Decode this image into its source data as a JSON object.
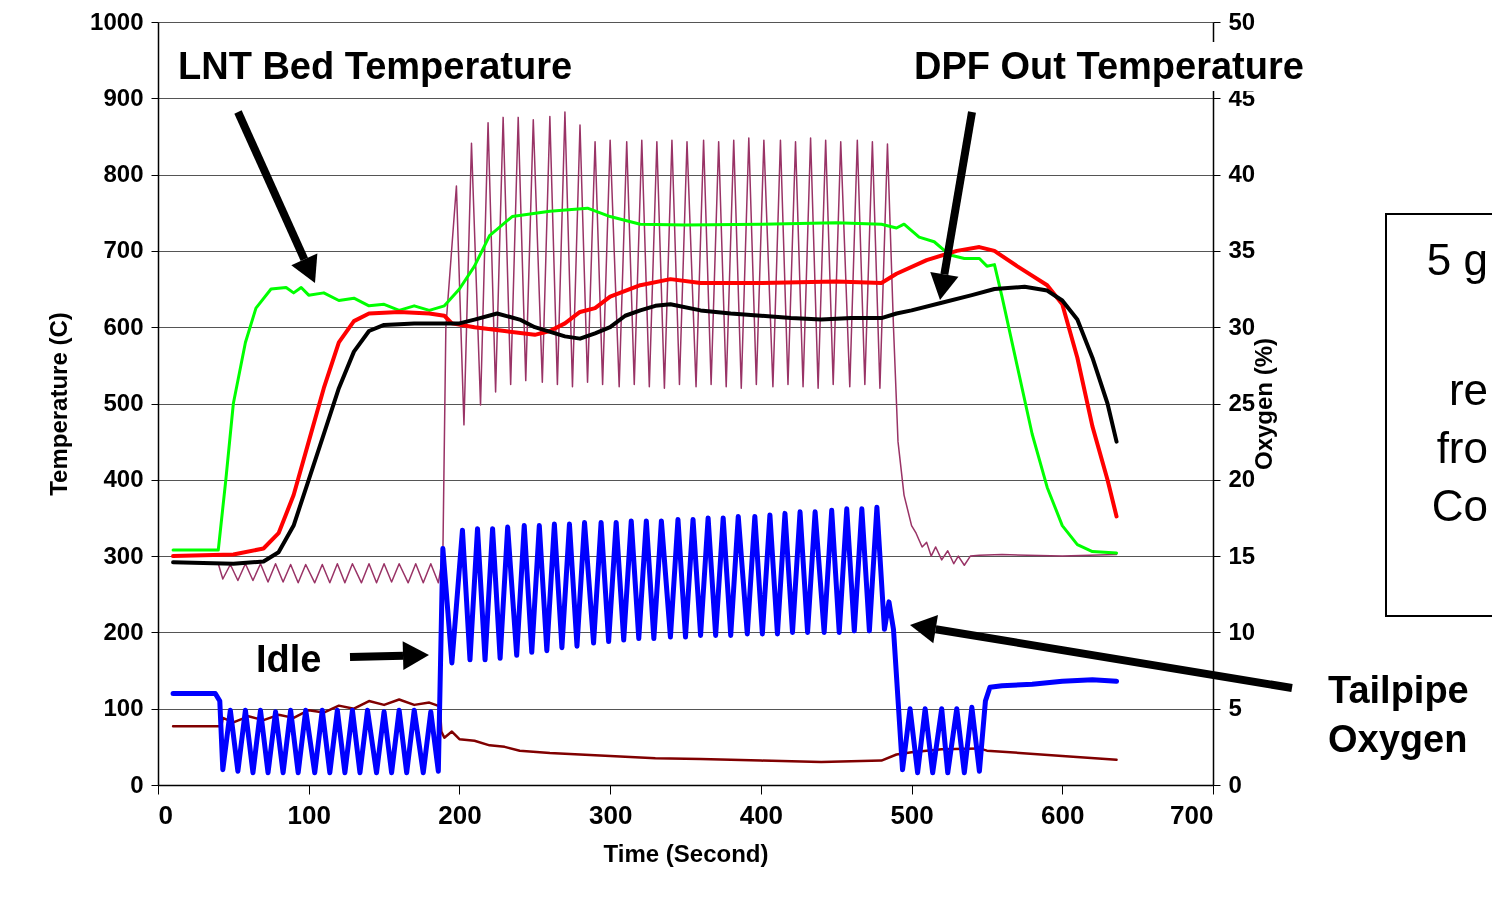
{
  "chart_data": {
    "type": "line",
    "xlabel": "Time (Second)",
    "ylabel": "Temperature (C)",
    "y2label": "Oxygen (%)",
    "xlim": [
      0,
      700
    ],
    "xticks": [
      0,
      100,
      200,
      300,
      400,
      500,
      600,
      700
    ],
    "ylim": [
      0,
      1000
    ],
    "yticks": [
      0,
      100,
      200,
      300,
      400,
      500,
      600,
      700,
      800,
      900,
      1000
    ],
    "y2lim": [
      0,
      50
    ],
    "y2ticks": [
      0,
      5,
      10,
      15,
      20,
      25,
      30,
      35,
      40,
      45,
      50
    ],
    "grid": "y",
    "annotations": [
      "LNT Bed Temperature",
      "DPF Out Temperature",
      "Idle",
      "Tailpipe Oxygen",
      "5 g",
      "re",
      "fro",
      "Co"
    ],
    "series": [
      {
        "color": "#993366",
        "x": [
          40,
          43,
          48,
          53,
          58,
          63,
          68,
          73,
          78,
          83,
          88,
          93,
          98,
          104,
          109,
          114,
          119,
          124,
          129,
          135,
          140,
          145,
          150,
          155,
          160,
          166,
          171,
          176,
          181,
          186,
          189,
          191,
          198,
          203,
          208,
          214,
          219,
          224,
          229,
          234,
          239,
          244,
          249,
          255,
          260,
          265,
          270,
          275,
          280,
          285,
          290,
          295,
          300,
          306,
          311,
          316,
          321,
          326,
          331,
          336,
          341,
          346,
          351,
          357,
          362,
          367,
          372,
          377,
          382,
          387,
          392,
          397,
          402,
          408,
          413,
          418,
          423,
          428,
          433,
          438,
          443,
          448,
          453,
          459,
          464,
          469,
          474,
          479,
          484,
          488,
          491,
          495,
          500,
          503,
          507,
          510,
          513,
          516,
          520,
          524,
          528,
          531,
          535,
          539,
          545,
          560,
          600,
          636
        ],
        "values": [
          290,
          270,
          289,
          268,
          290,
          268,
          290,
          266,
          290,
          266,
          289,
          265,
          289,
          265,
          289,
          265,
          290,
          265,
          290,
          265,
          290,
          265,
          290,
          266,
          290,
          265,
          290,
          265,
          290,
          265,
          300,
          600,
          785,
          472,
          841,
          498,
          868,
          515,
          875,
          525,
          875,
          530,
          872,
          528,
          876,
          525,
          882,
          522,
          865,
          528,
          843,
          525,
          845,
          522,
          843,
          525,
          845,
          522,
          843,
          520,
          845,
          525,
          843,
          522,
          845,
          525,
          843,
          522,
          845,
          520,
          848,
          525,
          845,
          522,
          845,
          525,
          843,
          522,
          848,
          520,
          845,
          525,
          843,
          522,
          845,
          525,
          843,
          520,
          840,
          600,
          450,
          380,
          340,
          330,
          312,
          318,
          300,
          312,
          295,
          307,
          290,
          300,
          288,
          300,
          301,
          302,
          300,
          302
        ]
      },
      {
        "color": "#800000",
        "x": [
          10,
          42,
          43,
          50,
          60,
          70,
          80,
          90,
          100,
          110,
          120,
          130,
          140,
          150,
          160,
          170,
          180,
          187,
          188,
          190,
          195,
          200,
          210,
          220,
          230,
          240,
          260,
          280,
          300,
          330,
          360,
          400,
          440,
          480,
          490,
          500,
          520,
          545,
          550,
          600,
          636
        ],
        "values": [
          77,
          77,
          88,
          82,
          90,
          85,
          92,
          88,
          98,
          95,
          104,
          100,
          110,
          105,
          112,
          105,
          108,
          103,
          70,
          62,
          70,
          60,
          58,
          52,
          50,
          45,
          42,
          40,
          38,
          35,
          34,
          32,
          30,
          32,
          40,
          43,
          47,
          48,
          45,
          38,
          33
        ]
      },
      {
        "color": "#00ff00",
        "x": [
          10,
          40,
          45,
          50,
          58,
          65,
          75,
          85,
          90,
          95,
          100,
          110,
          120,
          130,
          140,
          150,
          160,
          170,
          180,
          190,
          200,
          210,
          220,
          235,
          260,
          285,
          300,
          320,
          350,
          400,
          450,
          480,
          490,
          495,
          505,
          515,
          525,
          535,
          545,
          550,
          555,
          560,
          570,
          580,
          590,
          600,
          610,
          620,
          636
        ],
        "values": [
          308,
          308,
          400,
          500,
          580,
          625,
          650,
          652,
          645,
          652,
          642,
          645,
          635,
          638,
          628,
          630,
          622,
          628,
          622,
          628,
          650,
          680,
          720,
          745,
          752,
          756,
          745,
          735,
          734,
          735,
          737,
          735,
          730,
          735,
          718,
          712,
          695,
          690,
          690,
          680,
          682,
          640,
          550,
          460,
          390,
          340,
          315,
          306,
          304
        ]
      },
      {
        "color": "#ff0000",
        "x": [
          10,
          50,
          70,
          80,
          90,
          100,
          110,
          120,
          130,
          140,
          160,
          180,
          190,
          195,
          210,
          230,
          250,
          260,
          270,
          280,
          290,
          300,
          320,
          340,
          360,
          400,
          450,
          480,
          490,
          510,
          530,
          545,
          555,
          570,
          590,
          600,
          610,
          620,
          630,
          636
        ],
        "values": [
          300,
          302,
          310,
          330,
          380,
          450,
          520,
          580,
          608,
          618,
          620,
          618,
          615,
          605,
          600,
          595,
          590,
          595,
          605,
          620,
          625,
          640,
          655,
          663,
          658,
          658,
          660,
          658,
          670,
          688,
          700,
          705,
          700,
          680,
          655,
          630,
          560,
          470,
          400,
          352
        ]
      },
      {
        "color": "#000000",
        "x": [
          10,
          50,
          70,
          80,
          90,
          100,
          110,
          120,
          130,
          140,
          150,
          170,
          190,
          200,
          210,
          225,
          240,
          250,
          270,
          280,
          290,
          300,
          310,
          320,
          330,
          340,
          360,
          380,
          400,
          420,
          440,
          460,
          480,
          490,
          500,
          520,
          540,
          555,
          575,
          590,
          600,
          610,
          620,
          630,
          636
        ],
        "values": [
          292,
          290,
          293,
          305,
          340,
          400,
          460,
          520,
          568,
          595,
          603,
          605,
          605,
          605,
          610,
          618,
          610,
          600,
          588,
          585,
          592,
          600,
          615,
          622,
          628,
          630,
          622,
          618,
          615,
          612,
          610,
          612,
          612,
          618,
          622,
          632,
          642,
          650,
          653,
          648,
          635,
          610,
          560,
          500,
          450
        ]
      },
      {
        "color": "#0000ff",
        "axis": "y2",
        "x": [
          10,
          38,
          41,
          43,
          48,
          53,
          58,
          63,
          68,
          73,
          78,
          83,
          88,
          93,
          98,
          104,
          109,
          114,
          119,
          124,
          129,
          134,
          139,
          145,
          150,
          155,
          160,
          165,
          170,
          176,
          181,
          186,
          189,
          195,
          202,
          207,
          212,
          217,
          222,
          227,
          232,
          238,
          243,
          248,
          253,
          258,
          263,
          268,
          273,
          278,
          283,
          289,
          294,
          299,
          304,
          309,
          314,
          319,
          324,
          329,
          334,
          340,
          345,
          350,
          355,
          360,
          365,
          370,
          375,
          380,
          385,
          391,
          396,
          401,
          406,
          411,
          416,
          421,
          426,
          431,
          436,
          442,
          447,
          452,
          457,
          462,
          467,
          472,
          477,
          482,
          485,
          488,
          494,
          499,
          504,
          509,
          514,
          520,
          524,
          530,
          535,
          540,
          545,
          549,
          552,
          560,
          580,
          600,
          620,
          636
        ],
        "values": [
          6.0,
          6.0,
          5.5,
          1.0,
          4.9,
          0.9,
          4.9,
          0.8,
          4.9,
          0.8,
          4.8,
          0.8,
          4.9,
          0.8,
          4.9,
          0.8,
          4.9,
          0.8,
          4.9,
          0.8,
          4.9,
          0.8,
          4.9,
          0.8,
          4.8,
          0.8,
          4.9,
          0.8,
          4.9,
          0.8,
          4.8,
          0.9,
          15.5,
          8.0,
          16.7,
          8.2,
          16.8,
          8.2,
          16.8,
          8.3,
          16.9,
          8.5,
          17.0,
          8.7,
          17.0,
          8.8,
          17.1,
          9.0,
          17.1,
          9.1,
          17.2,
          9.3,
          17.2,
          9.4,
          17.2,
          9.5,
          17.3,
          9.6,
          17.3,
          9.6,
          17.3,
          9.7,
          17.4,
          9.7,
          17.4,
          9.8,
          17.5,
          9.8,
          17.5,
          9.8,
          17.6,
          9.9,
          17.6,
          9.9,
          17.7,
          9.9,
          17.8,
          10.0,
          17.9,
          10.0,
          17.9,
          10.0,
          18.0,
          10.0,
          18.1,
          10.1,
          18.1,
          10.1,
          18.2,
          10.2,
          12.0,
          10.2,
          1.0,
          5.0,
          0.8,
          5.0,
          0.8,
          5.0,
          0.8,
          5.0,
          0.8,
          5.1,
          0.9,
          5.5,
          6.4,
          6.5,
          6.6,
          6.8,
          6.9,
          6.8
        ]
      }
    ]
  }
}
